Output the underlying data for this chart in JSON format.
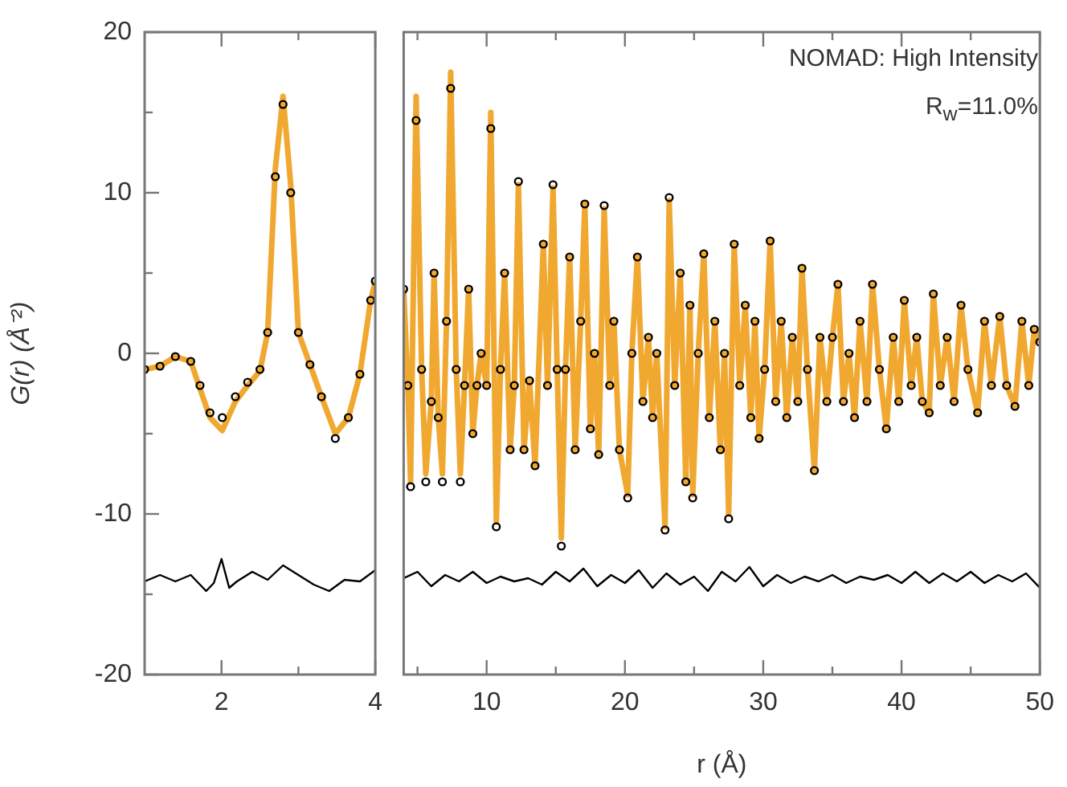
{
  "chart_data": [
    {
      "type": "line",
      "xlim": [
        1,
        4
      ],
      "xticks": [
        {
          "value": 2,
          "label": "2"
        },
        {
          "value": 3,
          "label": null
        },
        {
          "value": 4,
          "label": "4"
        }
      ],
      "ylim": [
        -20,
        20
      ],
      "yticks": [
        {
          "value": -20,
          "label": "-20"
        },
        {
          "value": -15,
          "label": null
        },
        {
          "value": -10,
          "label": "-10"
        },
        {
          "value": -5,
          "label": null
        },
        {
          "value": 0,
          "label": "0"
        },
        {
          "value": 5,
          "label": null
        },
        {
          "value": 10,
          "label": "10"
        },
        {
          "value": 15,
          "label": null
        },
        {
          "value": 20,
          "label": "20"
        }
      ],
      "ylabel": "G(r) (Å⁻²)",
      "grid": false,
      "legend": false,
      "series": [
        {
          "type": "line",
          "color": "#f0a830",
          "x": [
            1.0,
            1.2,
            1.4,
            1.6,
            1.72,
            1.85,
            2.01,
            2.18,
            2.34,
            2.5,
            2.6,
            2.7,
            2.8,
            2.9,
            3.0,
            3.15,
            3.3,
            3.48,
            3.65,
            3.8,
            3.94,
            4.0
          ],
          "values": [
            -1,
            -0.8,
            -0.2,
            -0.5,
            -2.2,
            -4,
            -4.8,
            -3,
            -2,
            -1.1,
            1.3,
            11.5,
            16,
            10.5,
            1.3,
            -0.7,
            -2.7,
            -5,
            -4,
            -1.3,
            3.3,
            4.5
          ]
        },
        {
          "type": "scatter",
          "marker": "circle",
          "color": "#000000",
          "x": [
            1.0,
            1.2,
            1.4,
            1.6,
            1.72,
            1.85,
            2.01,
            2.18,
            2.34,
            2.5,
            2.6,
            2.7,
            2.8,
            2.9,
            3.0,
            3.15,
            3.3,
            3.48,
            3.65,
            3.8,
            3.94,
            4.0
          ],
          "values": [
            -1,
            -0.8,
            -0.2,
            -0.5,
            -2,
            -3.7,
            -4,
            -2.7,
            -1.8,
            -1,
            1.3,
            11,
            15.5,
            10,
            1.3,
            -0.7,
            -2.7,
            -5.3,
            -4,
            -1.3,
            3.3,
            4.5
          ]
        },
        {
          "type": "line",
          "color": "#000000",
          "x": [
            1.0,
            1.2,
            1.4,
            1.6,
            1.8,
            1.9,
            2.0,
            2.1,
            2.2,
            2.4,
            2.6,
            2.8,
            3.0,
            3.2,
            3.4,
            3.6,
            3.8,
            4.0
          ],
          "values": [
            -14.2,
            -13.8,
            -14.2,
            -13.8,
            -14.8,
            -14.3,
            -12.8,
            -14.6,
            -14.2,
            -13.6,
            -14.1,
            -13.2,
            -13.8,
            -14.4,
            -14.8,
            -14.1,
            -14.2,
            -13.5
          ]
        }
      ]
    },
    {
      "type": "line",
      "xlim": [
        4,
        50
      ],
      "xticks": [
        {
          "value": 5,
          "label": null
        },
        10,
        {
          "value": 15,
          "label": null
        },
        20,
        {
          "value": 25,
          "label": null
        },
        30,
        {
          "value": 35,
          "label": null
        },
        40,
        {
          "value": 45,
          "label": null
        },
        50
      ],
      "ylim": [
        -20,
        20
      ],
      "tick_labels": "x",
      "xlabel": "r (Å)",
      "grid": false,
      "legend": false,
      "annotations": [
        "NOMAD: High Intensity",
        "R$_{w}$=11.0%"
      ],
      "series": [
        {
          "type": "line",
          "color": "#f0a830",
          "x": [
            4.0,
            4.3,
            4.5,
            4.9,
            5.3,
            5.6,
            6.0,
            6.2,
            6.5,
            6.8,
            7.1,
            7.4,
            7.8,
            8.1,
            8.4,
            8.7,
            9.0,
            9.3,
            9.6,
            10.0,
            10.3,
            10.7,
            11.0,
            11.3,
            11.7,
            12.0,
            12.3,
            12.7,
            13.1,
            13.5,
            14.1,
            14.4,
            14.8,
            15.1,
            15.4,
            15.7,
            16.0,
            16.4,
            16.8,
            17.1,
            17.5,
            17.8,
            18.1,
            18.5,
            18.9,
            19.2,
            19.6,
            20.2,
            20.5,
            20.9,
            21.3,
            21.7,
            22.0,
            22.3,
            22.9,
            23.2,
            23.6,
            24.0,
            24.4,
            24.7,
            24.9,
            25.3,
            25.7,
            26.1,
            26.5,
            26.9,
            27.2,
            27.5,
            27.9,
            28.3,
            28.7,
            29.1,
            29.4,
            29.7,
            30.1,
            30.5,
            30.9,
            31.3,
            31.7,
            32.1,
            32.5,
            32.8,
            33.2,
            33.7,
            34.1,
            34.6,
            35.0,
            35.4,
            35.8,
            36.2,
            36.6,
            37.0,
            37.5,
            37.9,
            38.4,
            38.9,
            39.4,
            39.8,
            40.2,
            40.7,
            41.1,
            41.5,
            42.0,
            42.3,
            42.8,
            43.3,
            43.8,
            44.3,
            44.8,
            45.5,
            46.0,
            46.5,
            47.1,
            47.6,
            48.2,
            48.7,
            49.2,
            49.6,
            50.0
          ],
          "values": [
            4,
            -2,
            -8,
            16,
            -1,
            -7.5,
            -3,
            5,
            -4,
            -7.5,
            2,
            17.5,
            -1,
            -7.5,
            -2,
            4,
            -5,
            -2,
            0,
            -2,
            15,
            -10.5,
            -1,
            5,
            -6,
            -2,
            10.5,
            -6,
            -1.7,
            -7,
            6.8,
            -2,
            10.3,
            -1,
            -11.5,
            -1,
            6,
            -6,
            2,
            9.3,
            -4.7,
            0,
            -6.3,
            9,
            -2,
            2,
            -6,
            -8.8,
            0,
            6,
            -3,
            1,
            -4,
            0,
            -10.8,
            9.5,
            -2,
            5,
            -8,
            3,
            -8.8,
            0,
            6.2,
            -4,
            2,
            -6,
            0,
            -10,
            6.8,
            -2,
            3,
            -4,
            2,
            -5.3,
            -1,
            7,
            -3,
            2,
            -4,
            1,
            -3,
            5.3,
            -1,
            -7.3,
            1,
            -3,
            1,
            4.3,
            -3,
            0,
            -4,
            2,
            -3,
            4.3,
            -1,
            -4.7,
            1,
            -3,
            3.3,
            -2,
            1,
            -3,
            -3.7,
            3.7,
            -2,
            1,
            -3,
            3,
            -1,
            -3.7,
            2,
            -2,
            2.3,
            -2,
            -3.3,
            2,
            -2,
            1.5,
            0.7
          ]
        },
        {
          "type": "scatter",
          "marker": "circle",
          "color": "#000000",
          "x": [
            4.0,
            4.3,
            4.5,
            4.9,
            5.3,
            5.6,
            6.0,
            6.2,
            6.5,
            6.8,
            7.1,
            7.4,
            7.8,
            8.1,
            8.4,
            8.7,
            9.0,
            9.3,
            9.6,
            10.0,
            10.3,
            10.7,
            11.0,
            11.3,
            11.7,
            12.0,
            12.3,
            12.7,
            13.1,
            13.5,
            14.1,
            14.4,
            14.8,
            15.1,
            15.4,
            15.7,
            16.0,
            16.4,
            16.8,
            17.1,
            17.5,
            17.8,
            18.1,
            18.5,
            18.9,
            19.2,
            19.6,
            20.2,
            20.5,
            20.9,
            21.3,
            21.7,
            22.0,
            22.3,
            22.9,
            23.2,
            23.6,
            24.0,
            24.4,
            24.7,
            24.9,
            25.3,
            25.7,
            26.1,
            26.5,
            26.9,
            27.2,
            27.5,
            27.9,
            28.3,
            28.7,
            29.1,
            29.4,
            29.7,
            30.1,
            30.5,
            30.9,
            31.3,
            31.7,
            32.1,
            32.5,
            32.8,
            33.2,
            33.7,
            34.1,
            34.6,
            35.0,
            35.4,
            35.8,
            36.2,
            36.6,
            37.0,
            37.5,
            37.9,
            38.4,
            38.9,
            39.4,
            39.8,
            40.2,
            40.7,
            41.1,
            41.5,
            42.0,
            42.3,
            42.8,
            43.3,
            43.8,
            44.3,
            44.8,
            45.5,
            46.0,
            46.5,
            47.1,
            47.6,
            48.2,
            48.7,
            49.2,
            49.6,
            50.0
          ],
          "values": [
            4,
            -2,
            -8.3,
            14.5,
            -1,
            -8,
            -3,
            5,
            -4,
            -8,
            2,
            16.5,
            -1,
            -8,
            -2,
            4,
            -5,
            -2,
            0,
            -2,
            14,
            -10.8,
            -1,
            5,
            -6,
            -2,
            10.7,
            -6,
            -1.7,
            -7,
            6.8,
            -2,
            10.5,
            -1,
            -12,
            -1,
            6,
            -6,
            2,
            9.3,
            -4.7,
            0,
            -6.3,
            9.2,
            -2,
            2,
            -6,
            -9,
            0,
            6,
            -3,
            1,
            -4,
            0,
            -11,
            9.7,
            -2,
            5,
            -8,
            3,
            -9,
            0,
            6.2,
            -4,
            2,
            -6,
            0,
            -10.3,
            6.8,
            -2,
            3,
            -4,
            2,
            -5.3,
            -1,
            7,
            -3,
            2,
            -4,
            1,
            -3,
            5.3,
            -1,
            -7.3,
            1,
            -3,
            1,
            4.3,
            -3,
            0,
            -4,
            2,
            -3,
            4.3,
            -1,
            -4.7,
            1,
            -3,
            3.3,
            -2,
            1,
            -3,
            -3.7,
            3.7,
            -2,
            1,
            -3,
            3,
            -1,
            -3.7,
            2,
            -2,
            2.3,
            -2,
            -3.3,
            2,
            -2,
            1.5,
            0.7
          ]
        },
        {
          "type": "line",
          "color": "#000000",
          "x": [
            4,
            5,
            6,
            7,
            8,
            9,
            10,
            11,
            12,
            13,
            14,
            15,
            16,
            17,
            18,
            19,
            20,
            21,
            22,
            23,
            24,
            25,
            26,
            27,
            28,
            29,
            30,
            31,
            32,
            33,
            34,
            35,
            36,
            37,
            38,
            39,
            40,
            41,
            42,
            43,
            44,
            45,
            46,
            47,
            48,
            49,
            50
          ],
          "values": [
            -14,
            -13.6,
            -14.5,
            -13.8,
            -14.2,
            -13.6,
            -14.3,
            -13.9,
            -14.2,
            -14,
            -14.4,
            -13.6,
            -14.2,
            -13.4,
            -14.5,
            -13.8,
            -14.3,
            -13.5,
            -14.6,
            -13.7,
            -14.4,
            -13.9,
            -14.8,
            -13.6,
            -14.2,
            -13.3,
            -14.5,
            -13.8,
            -14.3,
            -13.9,
            -14.2,
            -13.8,
            -14.3,
            -13.9,
            -14.1,
            -13.8,
            -14.3,
            -13.6,
            -14.3,
            -13.7,
            -14.2,
            -13.6,
            -14.3,
            -13.8,
            -14.2,
            -13.7,
            -14.6
          ]
        }
      ]
    }
  ]
}
